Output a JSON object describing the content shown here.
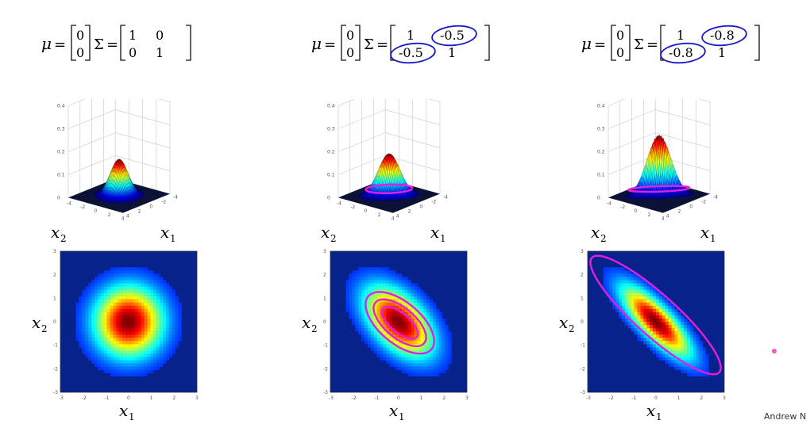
{
  "footer": {
    "credit": "Andrew N"
  },
  "colors": {
    "annotation": "#e020e0",
    "formula_circle": "#1a1acc",
    "heat_background": "#08228c",
    "surface_floor": "#0b1236"
  },
  "panels": [
    {
      "mu": [
        "0",
        "0"
      ],
      "sigma": [
        [
          "1",
          "0"
        ],
        [
          "0",
          "1"
        ]
      ],
      "circled_entries": [],
      "rho": 0,
      "peak": 0.16,
      "surface_zlim": [
        0,
        0.4
      ],
      "surface_zticks": [
        "0.4",
        "0.3",
        "0.2",
        "0.1",
        "0"
      ],
      "surface_xticks": [
        "-4",
        "-2",
        "0",
        "2",
        "4"
      ],
      "surface_yticks": [
        "4",
        "2",
        "0",
        "-2",
        "-4"
      ],
      "heat_ticks_x": [
        "-3",
        "-2",
        "-1",
        "0",
        "1",
        "2",
        "3"
      ],
      "heat_ticks_y": [
        "3",
        "2",
        "1",
        "0",
        "-1",
        "-2",
        "-3"
      ],
      "has_contour_annotation": false
    },
    {
      "mu": [
        "0",
        "0"
      ],
      "sigma": [
        [
          "1",
          "-0.5"
        ],
        [
          "-0.5",
          "1"
        ]
      ],
      "circled_entries": [
        "12",
        "21"
      ],
      "rho": -0.5,
      "peak": 0.18,
      "surface_zlim": [
        0,
        0.4
      ],
      "surface_zticks": [
        "0.4",
        "0.3",
        "0.2",
        "0.1",
        "0"
      ],
      "surface_xticks": [
        "-4",
        "-2",
        "0",
        "2",
        "4"
      ],
      "surface_yticks": [
        "4",
        "2",
        "0",
        "-2",
        "-4"
      ],
      "heat_ticks_x": [
        "-3",
        "-2",
        "-1",
        "0",
        "1",
        "2",
        "3"
      ],
      "heat_ticks_y": [
        "3",
        "2",
        "1",
        "0",
        "-1",
        "-2",
        "-3"
      ],
      "has_contour_annotation": true
    },
    {
      "mu": [
        "0",
        "0"
      ],
      "sigma": [
        [
          "1",
          "-0.8"
        ],
        [
          "-0.8",
          "1"
        ]
      ],
      "circled_entries": [
        "12",
        "21"
      ],
      "rho": -0.8,
      "peak": 0.27,
      "surface_zlim": [
        0,
        0.4
      ],
      "surface_zticks": [
        "0.4",
        "0.3",
        "0.2",
        "0.1",
        "0"
      ],
      "surface_xticks": [
        "-4",
        "-2",
        "0",
        "2",
        "4"
      ],
      "surface_yticks": [
        "4",
        "2",
        "0",
        "-2",
        "-4"
      ],
      "heat_ticks_x": [
        "-3",
        "-2",
        "-1",
        "0",
        "1",
        "2",
        "3"
      ],
      "heat_ticks_y": [
        "3",
        "2",
        "1",
        "0",
        "-1",
        "-2",
        "-3"
      ],
      "has_contour_annotation": true
    }
  ],
  "labels": {
    "mu_symbol": "μ",
    "equals": "=",
    "sigma_symbol": "Σ",
    "x1_base": "x",
    "x1_sub": "1",
    "x2_base": "x",
    "x2_sub": "2"
  }
}
